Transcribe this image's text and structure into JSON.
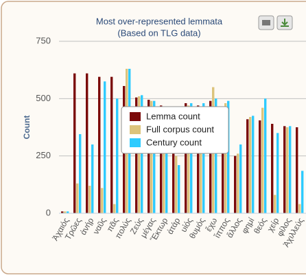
{
  "chart_data": {
    "type": "bar",
    "title": "Most over-represented lemmata",
    "subtitle": "(Based on TLG data)",
    "y_label": "Count",
    "categories": [
      "Ἀχαιός",
      "Τρῶες",
      "ἀνήρ",
      "ναῦς",
      "πᾶς",
      "πολύς",
      "Ζεύς",
      "μέγας",
      "Ἕκτωρ",
      "ἀτάρ",
      "υἱός",
      "θυμός",
      "ἔχω",
      "ἵππος",
      "ἄλλος",
      "φημί",
      "θεός",
      "χείρ",
      "φίλος",
      "Ἀχιλλεύς"
    ],
    "series": [
      {
        "name": "Lemma count",
        "color": "#7b0a0a",
        "values": [
          8,
          610,
          610,
          595,
          595,
          555,
          505,
          495,
          470,
          300,
          480,
          470,
          490,
          460,
          250,
          410,
          405,
          390,
          380,
          375
        ]
      },
      {
        "name": "Full corpus count",
        "color": "#dcc47c",
        "values": [
          8,
          130,
          120,
          110,
          40,
          630,
          510,
          490,
          460,
          250,
          470,
          460,
          550,
          480,
          260,
          420,
          460,
          80,
          375,
          40
        ]
      },
      {
        "name": "Century count",
        "color": "#2ecbff",
        "values": [
          8,
          345,
          300,
          575,
          500,
          630,
          515,
          490,
          390,
          210,
          480,
          480,
          500,
          490,
          300,
          425,
          500,
          350,
          380,
          185
        ]
      }
    ],
    "ylim": [
      0,
      750
    ],
    "yticks": [
      0,
      250,
      500,
      750
    ],
    "grid": true,
    "legend": "center"
  }
}
